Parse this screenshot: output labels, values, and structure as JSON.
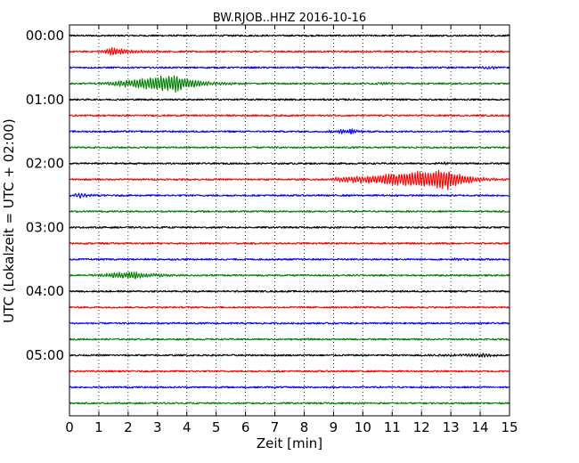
{
  "chart_data": {
    "type": "line",
    "title": "BW.RJOB..HHZ 2016-10-16",
    "xlabel": "Zeit  [min]",
    "ylabel": "UTC (Lokalzeit = UTC + 02:00)",
    "xlim": [
      0,
      15
    ],
    "xticks": [
      "0",
      "1",
      "2",
      "3",
      "4",
      "5",
      "6",
      "7",
      "8",
      "9",
      "10",
      "11",
      "12",
      "13",
      "14",
      "15"
    ],
    "yticks": [
      "00:00",
      "01:00",
      "02:00",
      "03:00",
      "04:00",
      "05:00"
    ],
    "grid": "vertical dotted",
    "colors": [
      "#000000",
      "#ff0000",
      "#0000ff",
      "#008000"
    ],
    "traces": [
      {
        "start": "00:00",
        "color": "#000000",
        "noise": 0.9,
        "events": []
      },
      {
        "start": "00:15",
        "color": "#ff0000",
        "noise": 0.9,
        "events": [
          {
            "t0": 0.9,
            "t1": 3.4,
            "peak": 1.5,
            "amp": 4.5
          }
        ]
      },
      {
        "start": "00:30",
        "color": "#0000ff",
        "noise": 0.9,
        "events": [
          {
            "t0": 13.8,
            "t1": 15.0,
            "peak": 14.4,
            "amp": 1.8
          }
        ]
      },
      {
        "start": "00:45",
        "color": "#008000",
        "noise": 0.9,
        "events": [
          {
            "t0": 0.8,
            "t1": 6.0,
            "peak": 3.6,
            "amp": 10.0
          },
          {
            "t0": 10.3,
            "t1": 11.3,
            "peak": 10.8,
            "amp": 1.6
          }
        ]
      },
      {
        "start": "01:00",
        "color": "#000000",
        "noise": 0.9,
        "events": []
      },
      {
        "start": "01:15",
        "color": "#ff0000",
        "noise": 0.9,
        "events": []
      },
      {
        "start": "01:30",
        "color": "#0000ff",
        "noise": 0.9,
        "events": [
          {
            "t0": 8.3,
            "t1": 10.6,
            "peak": 9.6,
            "amp": 3.0
          }
        ]
      },
      {
        "start": "01:45",
        "color": "#008000",
        "noise": 0.9,
        "events": []
      },
      {
        "start": "02:00",
        "color": "#000000",
        "noise": 0.9,
        "events": [
          {
            "t0": 12.3,
            "t1": 13.3,
            "peak": 12.8,
            "amp": 1.2
          }
        ]
      },
      {
        "start": "02:15",
        "color": "#ff0000",
        "noise": 0.9,
        "events": [
          {
            "t0": 8.4,
            "t1": 15.0,
            "peak": 12.9,
            "amp": 12.0
          }
        ]
      },
      {
        "start": "02:30",
        "color": "#0000ff",
        "noise": 0.9,
        "events": [
          {
            "t0": 0.0,
            "t1": 1.2,
            "peak": 0.4,
            "amp": 3.2
          }
        ]
      },
      {
        "start": "02:45",
        "color": "#008000",
        "noise": 0.9,
        "events": []
      },
      {
        "start": "03:00",
        "color": "#000000",
        "noise": 0.9,
        "events": []
      },
      {
        "start": "03:15",
        "color": "#ff0000",
        "noise": 0.9,
        "events": []
      },
      {
        "start": "03:30",
        "color": "#0000ff",
        "noise": 0.9,
        "events": [
          {
            "t0": 12.9,
            "t1": 14.0,
            "peak": 13.3,
            "amp": 1.5
          }
        ]
      },
      {
        "start": "03:45",
        "color": "#008000",
        "noise": 0.9,
        "events": [
          {
            "t0": 0.4,
            "t1": 4.5,
            "peak": 2.2,
            "amp": 4.5
          }
        ]
      },
      {
        "start": "04:00",
        "color": "#000000",
        "noise": 0.9,
        "events": []
      },
      {
        "start": "04:15",
        "color": "#ff0000",
        "noise": 0.9,
        "events": []
      },
      {
        "start": "04:30",
        "color": "#0000ff",
        "noise": 0.9,
        "events": []
      },
      {
        "start": "04:45",
        "color": "#008000",
        "noise": 0.9,
        "events": []
      },
      {
        "start": "05:00",
        "color": "#000000",
        "noise": 0.9,
        "events": [
          {
            "t0": 12.0,
            "t1": 14.8,
            "peak": 14.3,
            "amp": 2.0
          }
        ]
      },
      {
        "start": "05:15",
        "color": "#ff0000",
        "noise": 0.9,
        "events": []
      },
      {
        "start": "05:30",
        "color": "#0000ff",
        "noise": 0.9,
        "events": []
      },
      {
        "start": "05:45",
        "color": "#008000",
        "noise": 0.9,
        "events": []
      }
    ]
  }
}
